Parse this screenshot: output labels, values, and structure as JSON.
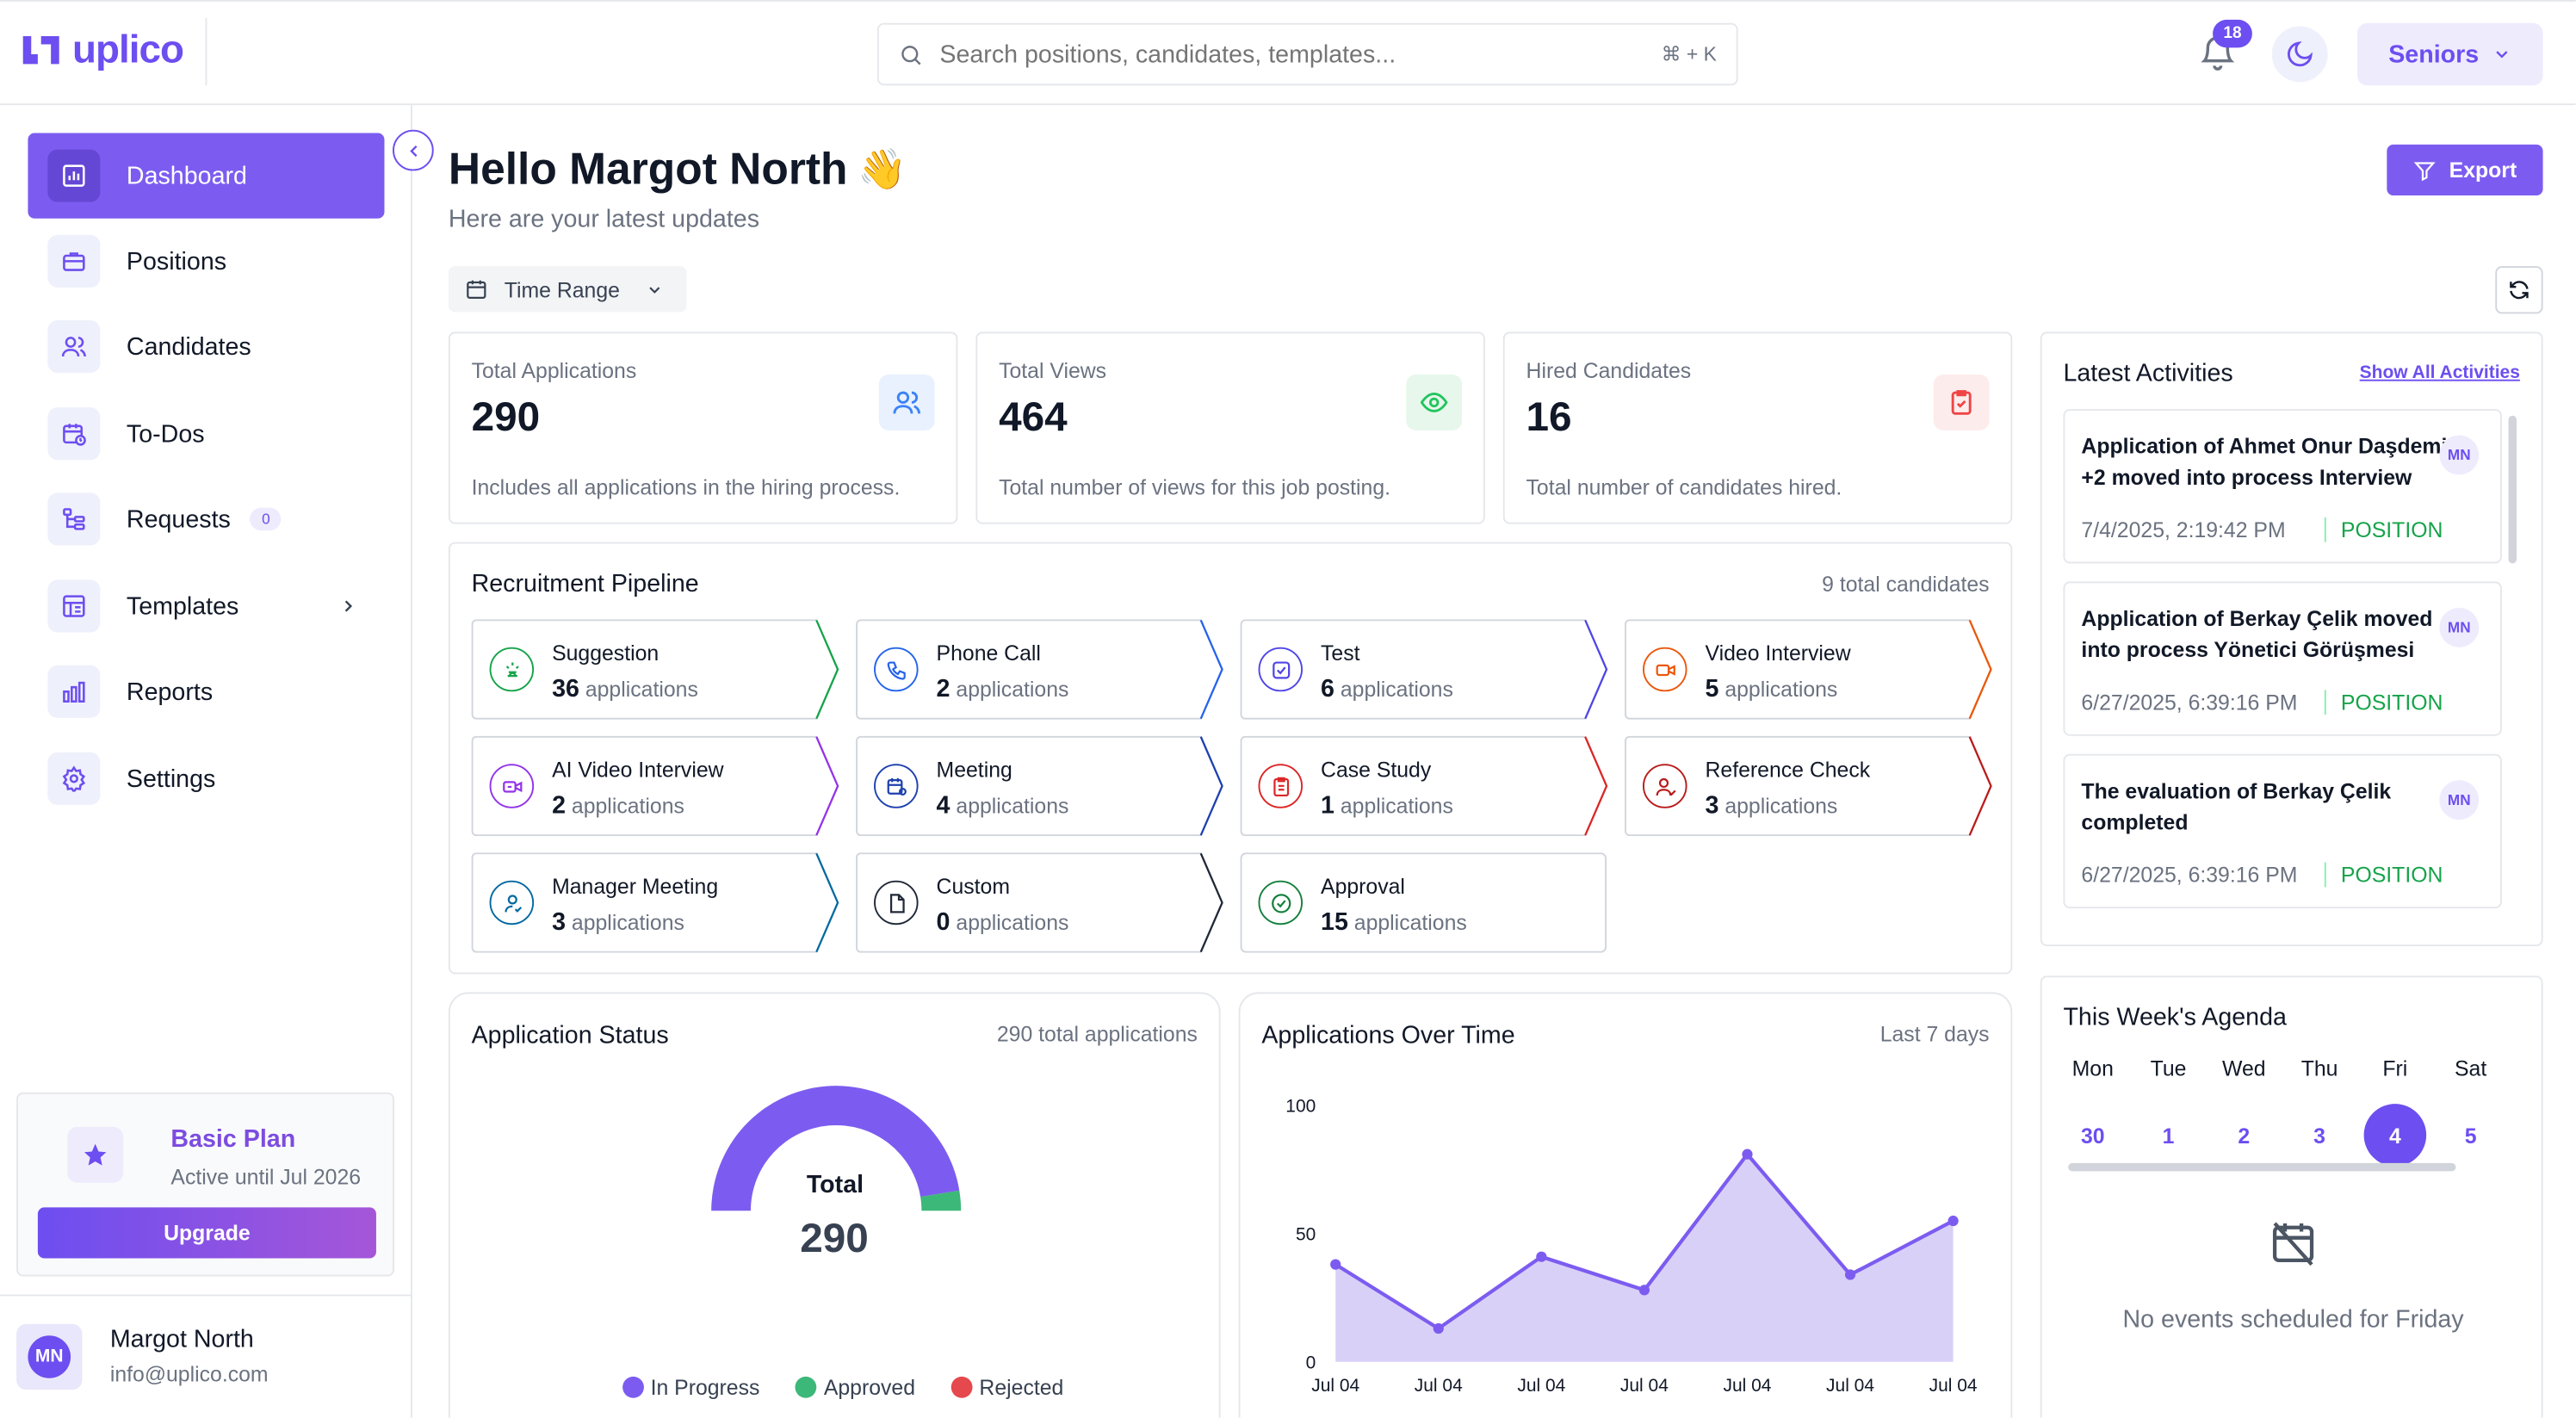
{
  "app": {
    "logo_text": "uplico"
  },
  "header": {
    "search_placeholder": "Search positions, candidates, templates...",
    "search_shortcut": "⌘ + K",
    "notification_count": "18",
    "role_label": "Seniors"
  },
  "sidebar": {
    "items": [
      {
        "label": "Dashboard",
        "icon": "bar-chart-icon",
        "active": true
      },
      {
        "label": "Positions",
        "icon": "briefcase-icon"
      },
      {
        "label": "Candidates",
        "icon": "users-icon"
      },
      {
        "label": "To-Dos",
        "icon": "calendar-clock-icon"
      },
      {
        "label": "Requests",
        "icon": "tree-icon",
        "count": "0"
      },
      {
        "label": "Templates",
        "icon": "template-icon"
      },
      {
        "label": "Reports",
        "icon": "bar-chart-icon"
      },
      {
        "label": "Settings",
        "icon": "gear-icon"
      }
    ],
    "plan": {
      "name": "Basic Plan",
      "subtitle": "Active until Jul 2026",
      "upgrade_label": "Upgrade"
    },
    "user": {
      "initials": "MN",
      "name": "Margot North",
      "email": "info@uplico.com"
    }
  },
  "main": {
    "greeting": "Hello Margot North",
    "greeting_emoji": "👋",
    "subtitle": "Here are your latest updates",
    "export_label": "Export",
    "time_range_label": "Time Range",
    "stats": [
      {
        "label": "Total Applications",
        "value": "290",
        "description": "Includes all applications in the hiring process.",
        "icon": "users-icon"
      },
      {
        "label": "Total Views",
        "value": "464",
        "description": "Total number of views for this job posting.",
        "icon": "eye-icon"
      },
      {
        "label": "Hired Candidates",
        "value": "16",
        "description": "Total number of candidates hired.",
        "icon": "clipboard-check-icon"
      }
    ],
    "pipeline": {
      "title": "Recruitment Pipeline",
      "total": "9 total candidates",
      "count_suffix": "applications",
      "stages": [
        {
          "name": "Suggestion",
          "count": "36",
          "color": "#16a34a",
          "icon": "sparkle-icon"
        },
        {
          "name": "Phone Call",
          "count": "2",
          "color": "#2563eb",
          "icon": "phone-icon"
        },
        {
          "name": "Test",
          "count": "6",
          "color": "#4f46e5",
          "icon": "checkbox-icon"
        },
        {
          "name": "Video Interview",
          "count": "5",
          "color": "#ea580c",
          "icon": "video-icon"
        },
        {
          "name": "AI Video Interview",
          "count": "2",
          "color": "#9333ea",
          "icon": "ai-video-icon"
        },
        {
          "name": "Meeting",
          "count": "4",
          "color": "#1e40af",
          "icon": "calendar-clock-icon"
        },
        {
          "name": "Case Study",
          "count": "1",
          "color": "#dc2626",
          "icon": "clipboard-icon"
        },
        {
          "name": "Reference Check",
          "count": "3",
          "color": "#b91c1c",
          "icon": "user-check-icon"
        },
        {
          "name": "Manager Meeting",
          "count": "3",
          "color": "#0369a1",
          "icon": "user-icon"
        },
        {
          "name": "Custom",
          "count": "0",
          "color": "#1f2937",
          "icon": "document-icon"
        },
        {
          "name": "Approval",
          "count": "15",
          "color": "#15803d",
          "icon": "check-circle-icon"
        }
      ]
    },
    "application_status": {
      "title": "Application Status",
      "total_text": "290 total applications",
      "center_label": "Total",
      "center_value": "290",
      "legend": [
        {
          "label": "In Progress",
          "color": "#7c5cf0"
        },
        {
          "label": "Approved",
          "color": "#3cb878"
        },
        {
          "label": "Rejected",
          "color": "#e5484d"
        }
      ]
    },
    "applications_over_time": {
      "title": "Applications Over Time",
      "range_label": "Last 7 days"
    },
    "activities": {
      "title": "Latest Activities",
      "show_all_label": "Show All Activities",
      "items": [
        {
          "title": "Application of Ahmet Onur Daşdemir +2 moved into process Interview",
          "initials": "MN",
          "date": "7/4/2025, 2:19:42 PM",
          "tag": "POSITION"
        },
        {
          "title": "Application of Berkay Çelik moved into process Yönetici Görüşmesi",
          "initials": "MN",
          "date": "6/27/2025, 6:39:16 PM",
          "tag": "POSITION"
        },
        {
          "title": "The evaluation of Berkay Çelik completed",
          "initials": "MN",
          "date": "6/27/2025, 6:39:16 PM",
          "tag": "POSITION"
        }
      ]
    },
    "agenda": {
      "title": "This Week's Agenda",
      "days": [
        {
          "name": "Mon",
          "date": "30"
        },
        {
          "name": "Tue",
          "date": "1"
        },
        {
          "name": "Wed",
          "date": "2"
        },
        {
          "name": "Thu",
          "date": "3"
        },
        {
          "name": "Fri",
          "date": "4",
          "today": true
        },
        {
          "name": "Sat",
          "date": "5"
        }
      ],
      "empty_text": "No events scheduled for Friday"
    }
  },
  "chart_data": [
    {
      "type": "pie",
      "variant": "semi-donut",
      "title": "Application Status",
      "total": 290,
      "slices": [
        {
          "name": "In Progress",
          "value": 275
        },
        {
          "name": "Approved",
          "value": 15
        },
        {
          "name": "Rejected",
          "value": 0
        }
      ],
      "legend_position": "bottom"
    },
    {
      "type": "area",
      "title": "Applications Over Time",
      "categories": [
        "Jul 04",
        "Jul 04",
        "Jul 04",
        "Jul 04",
        "Jul 04",
        "Jul 04",
        "Jul 04"
      ],
      "values": [
        38,
        13,
        41,
        28,
        81,
        34,
        55
      ],
      "ylim": [
        0,
        100
      ],
      "yticks": [
        0,
        50,
        100
      ],
      "grid": false,
      "color": "#7c5cf0"
    }
  ]
}
